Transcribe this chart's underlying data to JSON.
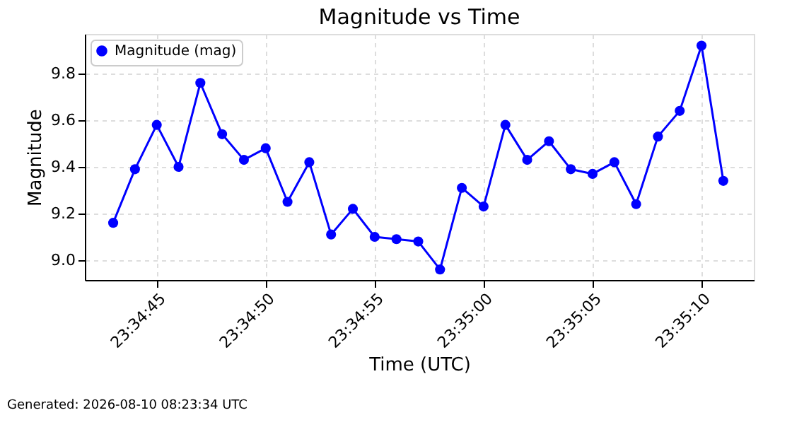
{
  "chart_data": {
    "type": "line",
    "title": "Magnitude vs Time",
    "xlabel": "Time (UTC)",
    "ylabel": "Magnitude",
    "x": [
      "2026-08-10T23:34:43",
      "2026-08-10T23:34:44",
      "2026-08-10T23:34:45",
      "2026-08-10T23:34:46",
      "2026-08-10T23:34:47",
      "2026-08-10T23:34:48",
      "2026-08-10T23:34:49",
      "2026-08-10T23:34:50",
      "2026-08-10T23:34:51",
      "2026-08-10T23:34:52",
      "2026-08-10T23:34:53",
      "2026-08-10T23:34:54",
      "2026-08-10T23:34:55",
      "2026-08-10T23:34:56",
      "2026-08-10T23:34:57",
      "2026-08-10T23:34:58",
      "2026-08-10T23:34:59",
      "2026-08-10T23:35:00",
      "2026-08-10T23:35:01",
      "2026-08-10T23:35:02",
      "2026-08-10T23:35:03",
      "2026-08-10T23:35:04",
      "2026-08-10T23:35:05",
      "2026-08-10T23:35:06",
      "2026-08-10T23:35:07",
      "2026-08-10T23:35:08",
      "2026-08-10T23:35:09",
      "2026-08-10T23:35:10",
      "2026-08-10T23:35:11"
    ],
    "series": [
      {
        "name": "Magnitude (mag)",
        "color": "#0000ff",
        "values": [
          9.16,
          9.39,
          9.58,
          9.4,
          9.76,
          9.54,
          9.43,
          9.48,
          9.25,
          9.42,
          9.11,
          9.22,
          9.1,
          9.09,
          9.08,
          8.96,
          9.31,
          9.23,
          9.58,
          9.43,
          9.51,
          9.39,
          9.37,
          9.42,
          9.24,
          9.53,
          9.64,
          9.92,
          9.34
        ]
      }
    ],
    "xlim": [
      "2026-08-10T23:34:41.700",
      "2026-08-10T23:35:12.400"
    ],
    "xticks": [
      {
        "value": "2026-08-10T23:34:45",
        "label": "23:34:45"
      },
      {
        "value": "2026-08-10T23:34:50",
        "label": "23:34:50"
      },
      {
        "value": "2026-08-10T23:34:55",
        "label": "23:34:55"
      },
      {
        "value": "2026-08-10T23:35:00",
        "label": "23:35:00"
      },
      {
        "value": "2026-08-10T23:35:05",
        "label": "23:35:05"
      },
      {
        "value": "2026-08-10T23:35:10",
        "label": "23:35:10"
      }
    ],
    "ylim": [
      8.915,
      9.97
    ],
    "yticks": [
      {
        "value": 9.0,
        "label": "9.0"
      },
      {
        "value": 9.2,
        "label": "9.2"
      },
      {
        "value": 9.4,
        "label": "9.4"
      },
      {
        "value": 9.6,
        "label": "9.6"
      },
      {
        "value": 9.8,
        "label": "9.8"
      }
    ],
    "grid": true,
    "legend": "top left",
    "marker": "circle",
    "line_style": "solid",
    "annotations": [
      "Generated: 2026-08-10 08:23:34 UTC"
    ]
  }
}
